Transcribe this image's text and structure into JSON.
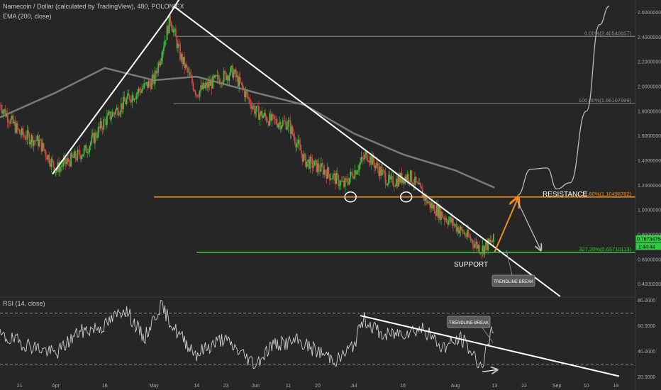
{
  "header": {
    "symbol_line": "Namecoin / Dollar (calculated by TradingView), 480, POLONIEX",
    "ema_line": "EMA (200, close)",
    "rsi_line": "RSI (14, close)"
  },
  "colors": {
    "background": "#262626",
    "up_candle": "#3fbf3f",
    "down_candle": "#d84a4a",
    "ema": "#8a8a8a",
    "trendline": "#ffffff",
    "resistance": "#f08a1c",
    "support": "#39c439",
    "fib_line": "#8c8c8c",
    "rsi": "#cfcfcf"
  },
  "chart_data": [
    {
      "type": "candlestick",
      "ylim": [
        0.3,
        2.7
      ],
      "y_ticks": [
        "2.60000000",
        "2.40000000",
        "2.20000000",
        "2.00000000",
        "1.80000000",
        "1.60000000",
        "1.40000000",
        "1.20000000",
        "1.00000000",
        "0.80000000",
        "0.60000000",
        "0.40000000"
      ],
      "y_tick_values": [
        2.6,
        2.4,
        2.2,
        2.0,
        1.8,
        1.6,
        1.4,
        1.2,
        1.0,
        0.8,
        0.6,
        0.4
      ],
      "x_ticks": [
        "21",
        "Apr",
        "16",
        "May",
        "14",
        "23",
        "Jun",
        "11",
        "20",
        "Jul",
        "16",
        "Aug",
        "13",
        "22",
        "Sep",
        "10",
        "19"
      ],
      "close_anchors": [
        {
          "x": "Mar 15",
          "y": 1.85
        },
        {
          "x": "Mar 21",
          "y": 1.62
        },
        {
          "x": "Mar 27",
          "y": 1.55
        },
        {
          "x": "Apr 1",
          "y": 1.33
        },
        {
          "x": "Apr 10",
          "y": 1.48
        },
        {
          "x": "Apr 16",
          "y": 1.72
        },
        {
          "x": "Apr 24",
          "y": 1.92
        },
        {
          "x": "May 1",
          "y": 2.05
        },
        {
          "x": "May 6",
          "y": 2.55
        },
        {
          "x": "May 9",
          "y": 2.25
        },
        {
          "x": "May 14",
          "y": 1.95
        },
        {
          "x": "May 20",
          "y": 2.05
        },
        {
          "x": "May 25",
          "y": 2.12
        },
        {
          "x": "Jun 1",
          "y": 1.8
        },
        {
          "x": "Jun 6",
          "y": 1.72
        },
        {
          "x": "Jun 11",
          "y": 1.7
        },
        {
          "x": "Jun 16",
          "y": 1.4
        },
        {
          "x": "Jun 22",
          "y": 1.32
        },
        {
          "x": "Jun 28",
          "y": 1.2
        },
        {
          "x": "Jul 5",
          "y": 1.45
        },
        {
          "x": "Jul 12",
          "y": 1.22
        },
        {
          "x": "Jul 18",
          "y": 1.28
        },
        {
          "x": "Jul 24",
          "y": 1.05
        },
        {
          "x": "Aug 2",
          "y": 0.85
        },
        {
          "x": "Aug 9",
          "y": 0.68
        },
        {
          "x": "Aug 13",
          "y": 0.76
        }
      ],
      "ema": [
        {
          "x": "Mar 15",
          "y": 1.75
        },
        {
          "x": "Apr 1",
          "y": 1.95
        },
        {
          "x": "Apr 16",
          "y": 2.15
        },
        {
          "x": "May 1",
          "y": 2.05
        },
        {
          "x": "May 14",
          "y": 2.08
        },
        {
          "x": "Jun 1",
          "y": 1.95
        },
        {
          "x": "Jun 16",
          "y": 1.85
        },
        {
          "x": "Jul 1",
          "y": 1.62
        },
        {
          "x": "Jul 16",
          "y": 1.45
        },
        {
          "x": "Aug 1",
          "y": 1.32
        },
        {
          "x": "Aug 13",
          "y": 1.18
        }
      ],
      "levels": [
        {
          "name": "fib-0",
          "label": "0.00%(2.40540657)",
          "value": 2.4054
        },
        {
          "name": "fib-100",
          "label": "100.00%(1.86107999)",
          "value": 1.8611
        },
        {
          "name": "resistance",
          "label": "23.60%(1.10498782)",
          "value": 1.105
        },
        {
          "name": "support",
          "label": "327.20%(0.65710113)",
          "value": 0.6571
        }
      ],
      "price_badges": [
        "0.76734764",
        "1:44:44"
      ],
      "trendlines": [
        {
          "name": "uptrend",
          "from": {
            "x": "Mar 31",
            "y": 1.29
          },
          "to": {
            "x": "May 5",
            "y": 2.55
          }
        },
        {
          "name": "uptrend-extension",
          "from": {
            "x": "May 5",
            "y": 2.55
          },
          "to": {
            "x": "May 24",
            "y": 3.35
          }
        },
        {
          "name": "downtrend",
          "from": {
            "x": "May 7",
            "y": 2.65
          },
          "to": {
            "x": "Sep 2",
            "y": 0.3
          }
        }
      ],
      "projection": {
        "up_arrow": {
          "from": {
            "x": "Aug 13",
            "y": 0.66
          },
          "to": {
            "x": "Aug 20",
            "y": 1.09
          }
        },
        "down_arrow": {
          "from": {
            "x": "Aug 20",
            "y": 1.07
          },
          "to": {
            "x": "Aug 27",
            "y": 0.68
          }
        },
        "curve": [
          {
            "x": "Aug 20",
            "y": 1.12
          },
          {
            "x": "Aug 24",
            "y": 1.33
          },
          {
            "x": "Aug 29",
            "y": 1.34
          },
          {
            "x": "Sep 1",
            "y": 1.17
          },
          {
            "x": "Sep 5",
            "y": 1.22
          },
          {
            "x": "Sep 10",
            "y": 1.8
          },
          {
            "x": "Sep 14",
            "y": 2.5
          },
          {
            "x": "Sep 17",
            "y": 2.65
          }
        ]
      },
      "circles": [
        {
          "x": "Jun 30",
          "y": 1.105
        },
        {
          "x": "Jul 17",
          "y": 1.105
        }
      ],
      "annotations": {
        "resistance": "RESISTANCE",
        "support": "SUPPORT",
        "trendline_break": "TRENDLINE BREAK"
      }
    },
    {
      "type": "line",
      "name": "RSI",
      "ylim": [
        18,
        82
      ],
      "y_ticks": [
        "80.0000",
        "60.0000",
        "40.0000",
        "20.0000"
      ],
      "y_tick_values": [
        80,
        60,
        40,
        20
      ],
      "bands": [
        70,
        30
      ],
      "anchors": [
        {
          "x": "Mar 15",
          "y": 52
        },
        {
          "x": "Mar 25",
          "y": 44
        },
        {
          "x": "Apr 1",
          "y": 38
        },
        {
          "x": "Apr 8",
          "y": 55
        },
        {
          "x": "Apr 16",
          "y": 60
        },
        {
          "x": "Apr 22",
          "y": 74
        },
        {
          "x": "Apr 28",
          "y": 50
        },
        {
          "x": "May 3",
          "y": 76
        },
        {
          "x": "May 8",
          "y": 55
        },
        {
          "x": "May 14",
          "y": 38
        },
        {
          "x": "May 22",
          "y": 50
        },
        {
          "x": "Jun 1",
          "y": 30
        },
        {
          "x": "Jun 6",
          "y": 45
        },
        {
          "x": "Jun 14",
          "y": 48
        },
        {
          "x": "Jun 20",
          "y": 40
        },
        {
          "x": "Jun 26",
          "y": 33
        },
        {
          "x": "Jul 1",
          "y": 45
        },
        {
          "x": "Jul 4",
          "y": 66
        },
        {
          "x": "Jul 10",
          "y": 52
        },
        {
          "x": "Jul 16",
          "y": 55
        },
        {
          "x": "Jul 22",
          "y": 58
        },
        {
          "x": "Jul 28",
          "y": 43
        },
        {
          "x": "Aug 3",
          "y": 50
        },
        {
          "x": "Aug 9",
          "y": 28
        },
        {
          "x": "Aug 13",
          "y": 62
        }
      ],
      "trendline": {
        "from": {
          "x": "Jul 3",
          "y": 68
        },
        "to": {
          "x": "Sep 20",
          "y": 20.5
        }
      },
      "annotation": "TRENDLINE BREAK"
    }
  ]
}
